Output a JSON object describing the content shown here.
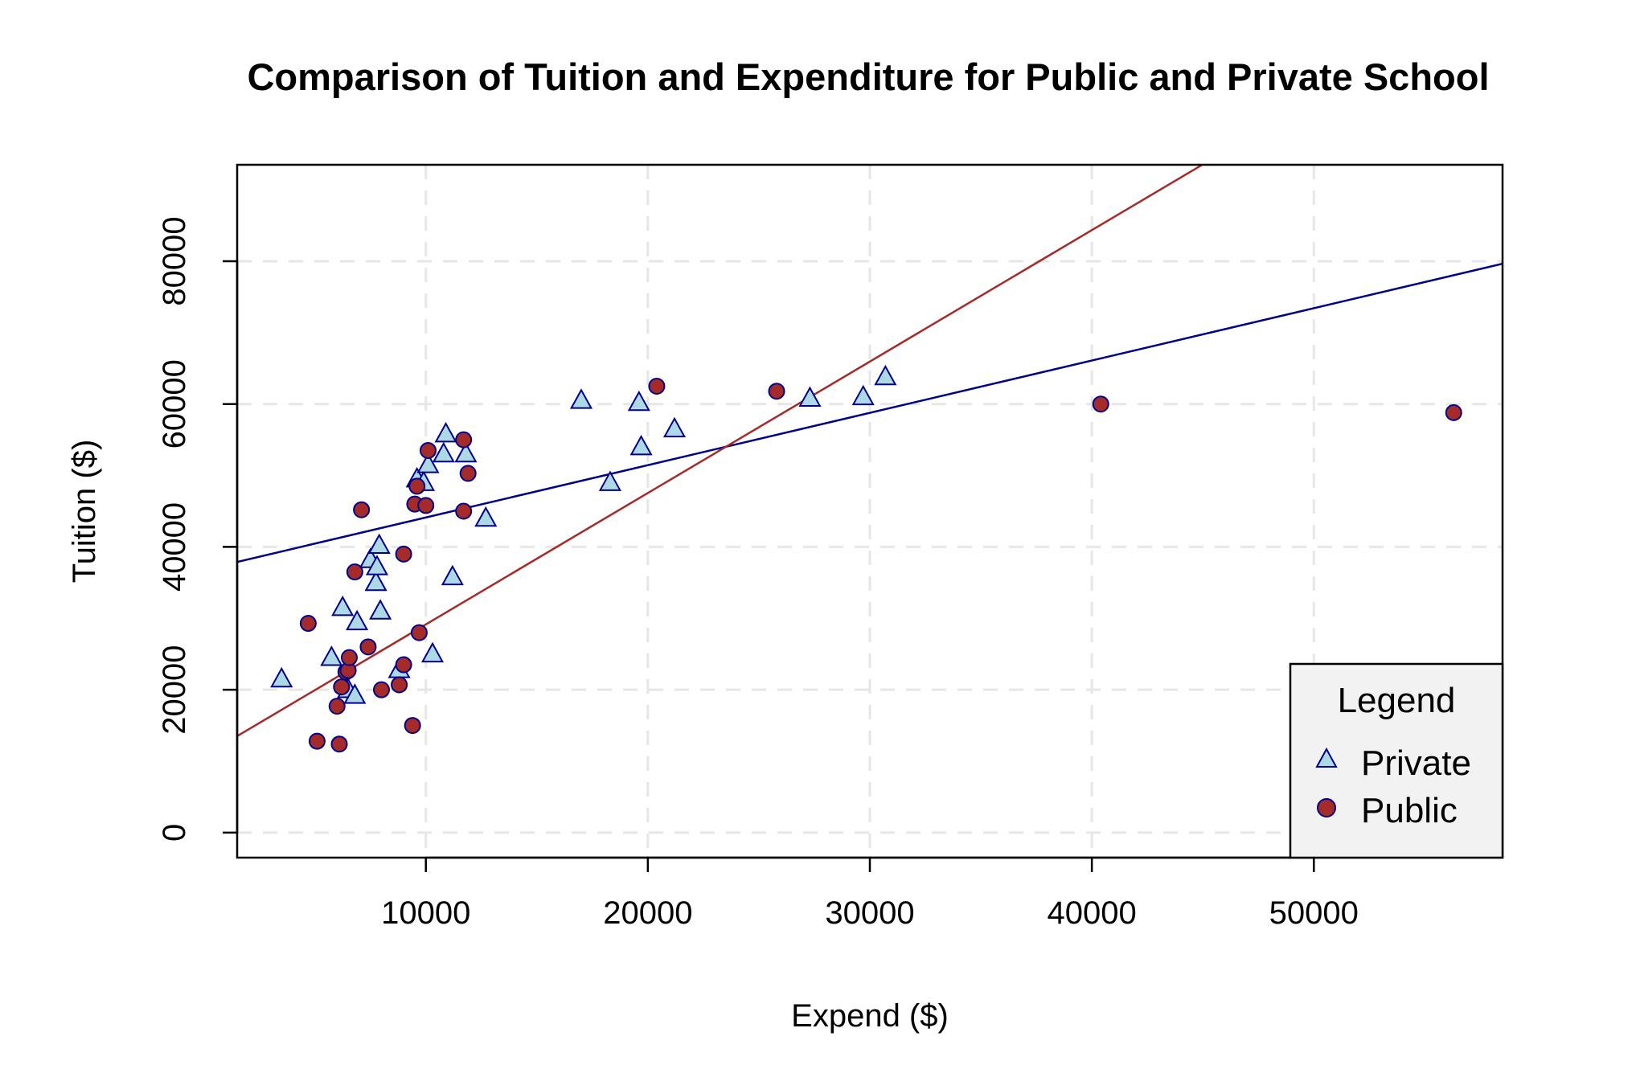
{
  "chart_data": {
    "type": "scatter",
    "title": "Comparison of Tuition and Expenditure for Public and Private School",
    "xlabel": "Expend ($)",
    "ylabel": "Tuition ($)",
    "xlim": [
      1500,
      58500
    ],
    "ylim": [
      -3500,
      93500
    ],
    "xticks": [
      10000,
      20000,
      30000,
      40000,
      50000
    ],
    "yticks": [
      0,
      20000,
      40000,
      60000,
      80000
    ],
    "grid": true,
    "legend": {
      "title": "Legend",
      "position": "bottom-right",
      "entries": [
        "Private",
        "Public"
      ]
    },
    "colors": {
      "private_fill": "#add8e6",
      "private_edge": "#00008b",
      "public_fill": "#a52a2a",
      "public_edge": "#00008b",
      "private_line": "#00008b",
      "public_line": "#a52a2a",
      "grid": "#e6e6e6"
    },
    "series": [
      {
        "name": "Private",
        "marker": "triangle",
        "points": [
          [
            3500,
            21500
          ],
          [
            5750,
            24500
          ],
          [
            6250,
            31500
          ],
          [
            6500,
            20000
          ],
          [
            6800,
            19200
          ],
          [
            6900,
            29500
          ],
          [
            7500,
            38200
          ],
          [
            7750,
            35000
          ],
          [
            7800,
            37200
          ],
          [
            7900,
            40200
          ],
          [
            7950,
            31000
          ],
          [
            8800,
            22800
          ],
          [
            9600,
            49500
          ],
          [
            9900,
            49000
          ],
          [
            10100,
            51500
          ],
          [
            10300,
            25000
          ],
          [
            10800,
            53000
          ],
          [
            10900,
            55800
          ],
          [
            11200,
            35800
          ],
          [
            11800,
            53000
          ],
          [
            12700,
            44000
          ],
          [
            17000,
            60500
          ],
          [
            18300,
            49000
          ],
          [
            19600,
            60200
          ],
          [
            19700,
            54000
          ],
          [
            21200,
            56500
          ],
          [
            27300,
            60800
          ],
          [
            29700,
            61000
          ],
          [
            30700,
            63800
          ]
        ]
      },
      {
        "name": "Public",
        "marker": "circle",
        "points": [
          [
            4700,
            29300
          ],
          [
            5100,
            12800
          ],
          [
            6000,
            17700
          ],
          [
            6100,
            12400
          ],
          [
            6200,
            20400
          ],
          [
            6400,
            22500
          ],
          [
            6500,
            22700
          ],
          [
            6550,
            24500
          ],
          [
            6800,
            36500
          ],
          [
            7100,
            45200
          ],
          [
            7400,
            26000
          ],
          [
            8000,
            20000
          ],
          [
            8800,
            20700
          ],
          [
            9000,
            23500
          ],
          [
            9000,
            39000
          ],
          [
            9400,
            15000
          ],
          [
            9500,
            46000
          ],
          [
            9600,
            48500
          ],
          [
            9700,
            28000
          ],
          [
            10000,
            45800
          ],
          [
            10100,
            53500
          ],
          [
            11700,
            55000
          ],
          [
            11700,
            45000
          ],
          [
            11900,
            50300
          ],
          [
            20400,
            62500
          ],
          [
            25800,
            61800
          ],
          [
            40400,
            60000
          ],
          [
            56300,
            58800
          ]
        ]
      }
    ],
    "fit_lines": [
      {
        "name": "Private",
        "intercept": 36800,
        "slope": 0.7324
      },
      {
        "name": "Public",
        "intercept": 10750,
        "slope": 1.84
      }
    ]
  }
}
